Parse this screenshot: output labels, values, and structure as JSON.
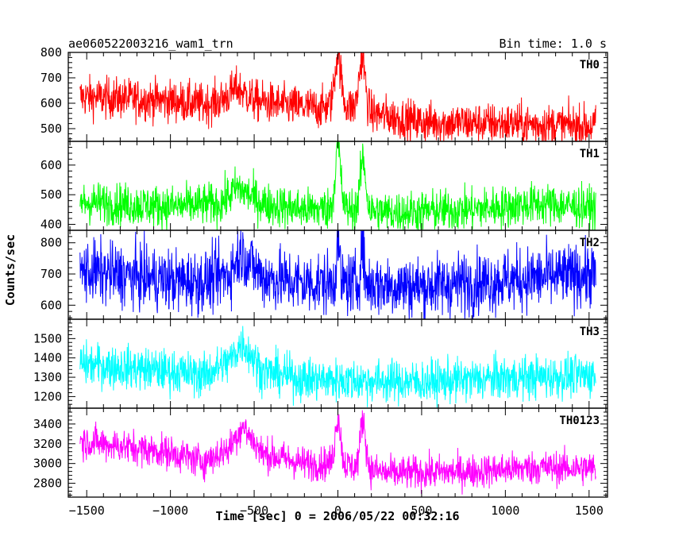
{
  "header": {
    "title": "ae060522003216_wam1_trn",
    "bin_time": "Bin time: 1.0 s"
  },
  "chart_data": {
    "type": "line",
    "xlabel": "Time [sec] 0 = 2006/05/22 00:32:16",
    "ylabel": "Counts/sec",
    "xlim": [
      -1610,
      1610
    ],
    "x_ticks": [
      -1500,
      -1000,
      -500,
      0,
      500,
      1000,
      1500
    ],
    "x_tick_labels": [
      "−1500",
      "−1000",
      "−500",
      "0",
      "500",
      "1000",
      "1500"
    ],
    "x_range_data": [
      -1540,
      1540
    ],
    "panels": [
      {
        "name": "TH0",
        "color": "#ff0000",
        "ylim": [
          450,
          800
        ],
        "ticks": [
          500,
          600,
          700,
          800
        ],
        "baseline": [
          [
            -1540,
            625
          ],
          [
            -1000,
            610
          ],
          [
            -800,
            595
          ],
          [
            -700,
            610
          ],
          [
            -600,
            660
          ],
          [
            -500,
            610
          ],
          [
            -300,
            590
          ],
          [
            -100,
            580
          ],
          [
            0,
            600
          ],
          [
            200,
            560
          ],
          [
            500,
            525
          ],
          [
            1000,
            520
          ],
          [
            1540,
            510
          ]
        ],
        "flares": [
          {
            "t": 0,
            "peak": 790,
            "width": 18
          },
          {
            "t": 145,
            "peak": 780,
            "width": 18
          }
        ],
        "noise": 40
      },
      {
        "name": "TH1",
        "color": "#00ff00",
        "ylim": [
          380,
          680
        ],
        "ticks": [
          400,
          500,
          600
        ],
        "baseline": [
          [
            -1540,
            475
          ],
          [
            -1000,
            460
          ],
          [
            -700,
            470
          ],
          [
            -600,
            525
          ],
          [
            -450,
            470
          ],
          [
            -200,
            450
          ],
          [
            0,
            455
          ],
          [
            300,
            440
          ],
          [
            800,
            450
          ],
          [
            1200,
            470
          ],
          [
            1540,
            455
          ]
        ],
        "flares": [
          {
            "t": 0,
            "peak": 660,
            "width": 16
          },
          {
            "t": 150,
            "peak": 620,
            "width": 16
          }
        ],
        "noise": 35
      },
      {
        "name": "TH2",
        "color": "#0000ff",
        "ylim": [
          555,
          840
        ],
        "ticks": [
          600,
          700,
          800
        ],
        "baseline": [
          [
            -1540,
            710
          ],
          [
            -1000,
            680
          ],
          [
            -800,
            675
          ],
          [
            -650,
            700
          ],
          [
            -580,
            770
          ],
          [
            -450,
            690
          ],
          [
            -200,
            670
          ],
          [
            0,
            670
          ],
          [
            500,
            660
          ],
          [
            1000,
            680
          ],
          [
            1540,
            700
          ]
        ],
        "flares": [
          {
            "t": 0,
            "peak": 800,
            "width": 10
          },
          {
            "t": 145,
            "peak": 800,
            "width": 10
          }
        ],
        "noise": 50
      },
      {
        "name": "TH3",
        "color": "#00ffff",
        "ylim": [
          1140,
          1600
        ],
        "ticks": [
          1200,
          1300,
          1400,
          1500
        ],
        "baseline": [
          [
            -1540,
            1370
          ],
          [
            -1000,
            1330
          ],
          [
            -800,
            1310
          ],
          [
            -650,
            1380
          ],
          [
            -570,
            1480
          ],
          [
            -450,
            1330
          ],
          [
            -200,
            1290
          ],
          [
            0,
            1285
          ],
          [
            500,
            1275
          ],
          [
            1000,
            1295
          ],
          [
            1540,
            1310
          ]
        ],
        "flares": [],
        "noise": 55
      },
      {
        "name": "TH0123",
        "color": "#ff00ff",
        "ylim": [
          2660,
          3560
        ],
        "ticks": [
          2800,
          3000,
          3200,
          3400
        ],
        "baseline": [
          [
            -1540,
            3230
          ],
          [
            -1000,
            3110
          ],
          [
            -800,
            3020
          ],
          [
            -650,
            3150
          ],
          [
            -570,
            3380
          ],
          [
            -450,
            3100
          ],
          [
            -200,
            3000
          ],
          [
            0,
            3000
          ],
          [
            300,
            2900
          ],
          [
            800,
            2920
          ],
          [
            1200,
            2960
          ],
          [
            1540,
            2950
          ]
        ],
        "flares": [
          {
            "t": 0,
            "peak": 3470,
            "width": 16
          },
          {
            "t": 150,
            "peak": 3450,
            "width": 16
          }
        ],
        "noise": 85
      }
    ]
  }
}
